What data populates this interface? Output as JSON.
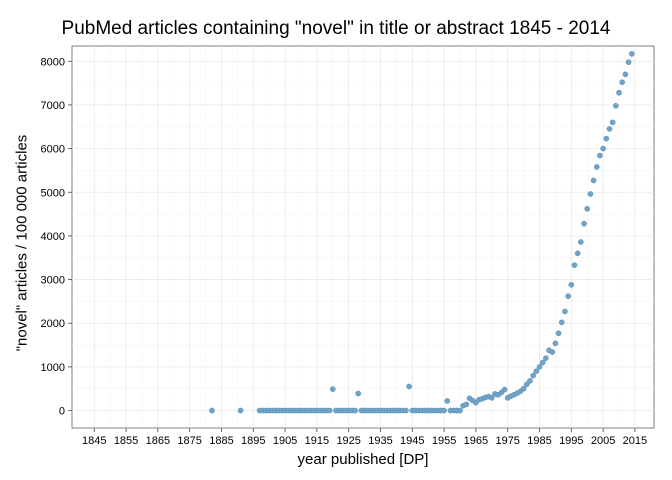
{
  "chart_data": {
    "type": "scatter",
    "title": "PubMed articles containing \"novel\" in title or abstract 1845 - 2014",
    "xlabel": "year published [DP]",
    "ylabel": "\"novel\" articles / 100 000 articles",
    "xlim": [
      1838,
      2021
    ],
    "ylim": [
      -400,
      8350
    ],
    "xticks": [
      1845,
      1855,
      1865,
      1875,
      1885,
      1895,
      1905,
      1915,
      1925,
      1935,
      1945,
      1955,
      1965,
      1975,
      1985,
      1995,
      2005,
      2015
    ],
    "yticks": [
      0,
      1000,
      2000,
      3000,
      4000,
      5000,
      6000,
      7000,
      8000
    ],
    "grid": true,
    "point_color": "#6fa4c7",
    "points": [
      [
        1882,
        0
      ],
      [
        1891,
        0
      ],
      [
        1897,
        0
      ],
      [
        1898,
        0
      ],
      [
        1899,
        0
      ],
      [
        1900,
        0
      ],
      [
        1901,
        0
      ],
      [
        1902,
        0
      ],
      [
        1903,
        0
      ],
      [
        1904,
        0
      ],
      [
        1905,
        0
      ],
      [
        1906,
        0
      ],
      [
        1907,
        0
      ],
      [
        1908,
        0
      ],
      [
        1909,
        0
      ],
      [
        1910,
        0
      ],
      [
        1911,
        0
      ],
      [
        1912,
        0
      ],
      [
        1913,
        0
      ],
      [
        1914,
        0
      ],
      [
        1915,
        0
      ],
      [
        1916,
        0
      ],
      [
        1917,
        0
      ],
      [
        1918,
        0
      ],
      [
        1919,
        0
      ],
      [
        1920,
        490
      ],
      [
        1921,
        0
      ],
      [
        1922,
        0
      ],
      [
        1923,
        0
      ],
      [
        1924,
        0
      ],
      [
        1925,
        0
      ],
      [
        1926,
        0
      ],
      [
        1927,
        0
      ],
      [
        1928,
        390
      ],
      [
        1929,
        0
      ],
      [
        1930,
        0
      ],
      [
        1931,
        0
      ],
      [
        1932,
        0
      ],
      [
        1933,
        0
      ],
      [
        1934,
        0
      ],
      [
        1935,
        0
      ],
      [
        1936,
        0
      ],
      [
        1937,
        0
      ],
      [
        1938,
        0
      ],
      [
        1939,
        0
      ],
      [
        1940,
        0
      ],
      [
        1941,
        0
      ],
      [
        1942,
        0
      ],
      [
        1943,
        0
      ],
      [
        1944,
        550
      ],
      [
        1945,
        0
      ],
      [
        1946,
        0
      ],
      [
        1947,
        0
      ],
      [
        1948,
        0
      ],
      [
        1949,
        0
      ],
      [
        1950,
        0
      ],
      [
        1951,
        0
      ],
      [
        1952,
        0
      ],
      [
        1953,
        0
      ],
      [
        1954,
        0
      ],
      [
        1955,
        0
      ],
      [
        1956,
        220
      ],
      [
        1957,
        0
      ],
      [
        1958,
        0
      ],
      [
        1959,
        0
      ],
      [
        1960,
        0
      ],
      [
        1961,
        110
      ],
      [
        1962,
        140
      ],
      [
        1963,
        280
      ],
      [
        1964,
        230
      ],
      [
        1965,
        180
      ],
      [
        1966,
        250
      ],
      [
        1967,
        270
      ],
      [
        1968,
        300
      ],
      [
        1969,
        320
      ],
      [
        1970,
        290
      ],
      [
        1971,
        380
      ],
      [
        1972,
        360
      ],
      [
        1973,
        410
      ],
      [
        1974,
        480
      ],
      [
        1975,
        290
      ],
      [
        1976,
        330
      ],
      [
        1977,
        360
      ],
      [
        1978,
        400
      ],
      [
        1979,
        440
      ],
      [
        1980,
        500
      ],
      [
        1981,
        600
      ],
      [
        1982,
        680
      ],
      [
        1983,
        800
      ],
      [
        1984,
        900
      ],
      [
        1985,
        1000
      ],
      [
        1986,
        1100
      ],
      [
        1987,
        1200
      ],
      [
        1988,
        1380
      ],
      [
        1989,
        1340
      ],
      [
        1990,
        1540
      ],
      [
        1991,
        1770
      ],
      [
        1992,
        2020
      ],
      [
        1993,
        2270
      ],
      [
        1994,
        2620
      ],
      [
        1995,
        2880
      ],
      [
        1996,
        3330
      ],
      [
        1997,
        3600
      ],
      [
        1998,
        3860
      ],
      [
        1999,
        4280
      ],
      [
        2000,
        4620
      ],
      [
        2001,
        4960
      ],
      [
        2002,
        5270
      ],
      [
        2003,
        5580
      ],
      [
        2004,
        5840
      ],
      [
        2005,
        6000
      ],
      [
        2006,
        6230
      ],
      [
        2007,
        6450
      ],
      [
        2008,
        6600
      ],
      [
        2009,
        6980
      ],
      [
        2010,
        7280
      ],
      [
        2011,
        7520
      ],
      [
        2012,
        7700
      ],
      [
        2013,
        7980
      ],
      [
        2014,
        8170
      ]
    ]
  }
}
